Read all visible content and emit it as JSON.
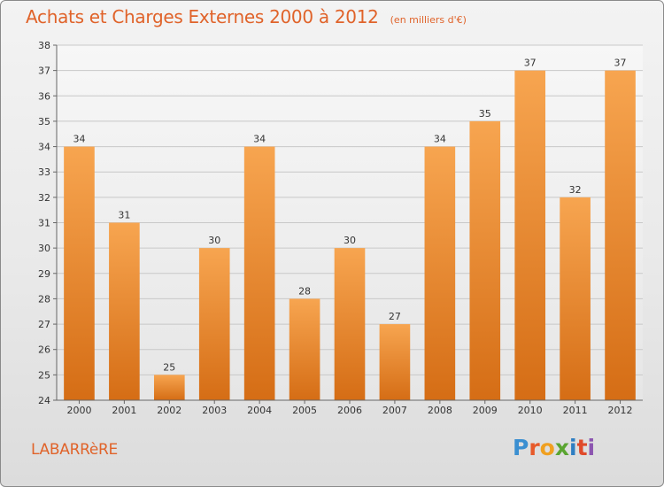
{
  "chart_data": {
    "type": "bar",
    "title": "Achats et Charges Externes 2000 à 2012",
    "subtitle": "(en milliers d'€)",
    "categories": [
      "2000",
      "2001",
      "2002",
      "2003",
      "2004",
      "2005",
      "2006",
      "2007",
      "2008",
      "2009",
      "2010",
      "2011",
      "2012"
    ],
    "values": [
      34,
      31,
      25,
      30,
      34,
      28,
      30,
      27,
      34,
      35,
      37,
      32,
      37
    ],
    "ylim": [
      24,
      38
    ],
    "yticks": [
      "24",
      "25",
      "26",
      "27",
      "28",
      "29",
      "30",
      "31",
      "32",
      "33",
      "34",
      "35",
      "36",
      "37",
      "38"
    ],
    "grid": true,
    "bar_color_top": "#f7a550",
    "bar_color_bottom": "#d56d15"
  },
  "footer": {
    "town": "LABARRèRE",
    "logo": {
      "p": "P",
      "r": "r",
      "o": "o",
      "x": "x",
      "i1": "i",
      "t": "t",
      "i2": "i"
    }
  }
}
